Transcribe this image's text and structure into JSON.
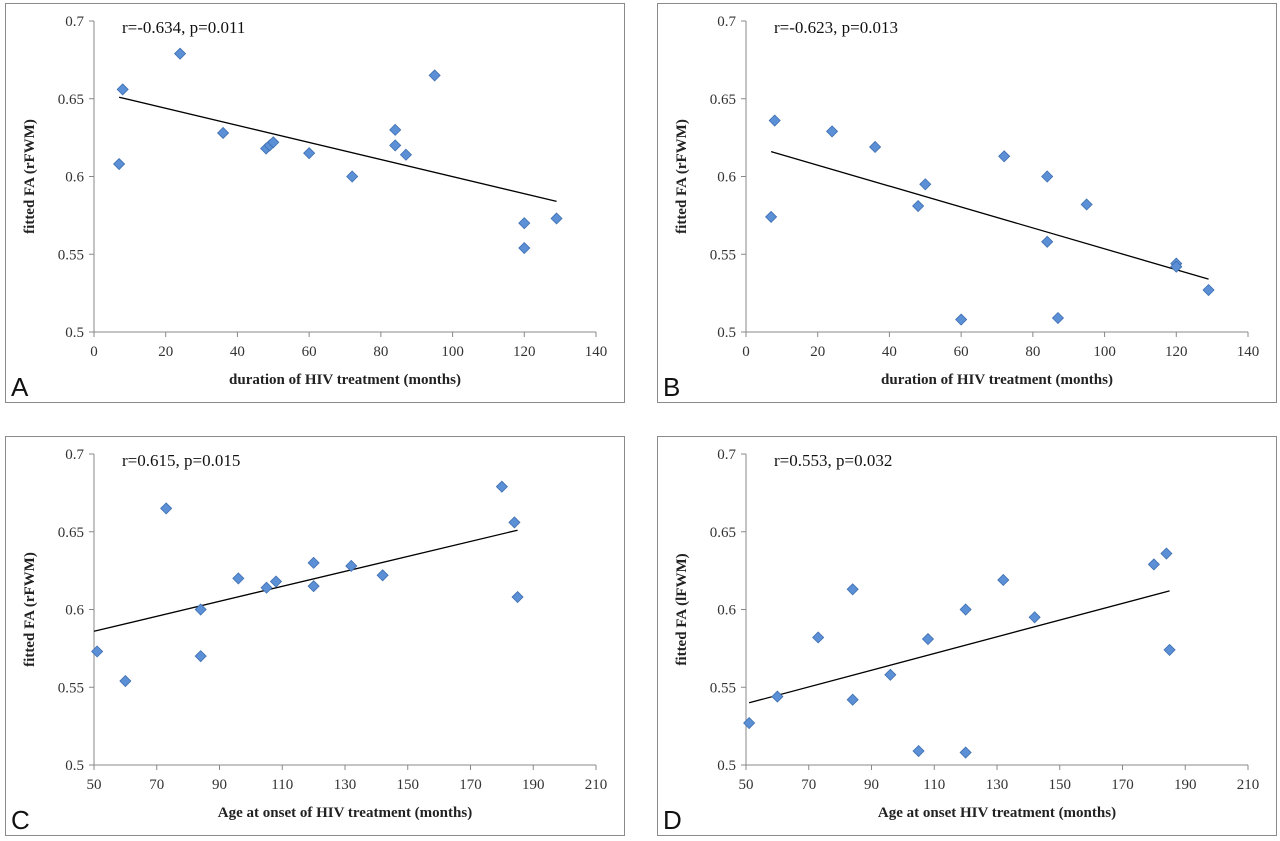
{
  "chart_data": [
    {
      "type": "scatter",
      "panel_label": "A",
      "annotation": "r=-0.634, p=0.011",
      "xlabel": "duration of HIV treatment (months)",
      "ylabel": "fitted FA (rFWM)",
      "xlim": [
        0,
        140
      ],
      "ylim": [
        0.5,
        0.7
      ],
      "xticks": [
        0,
        20,
        40,
        60,
        80,
        100,
        120,
        140
      ],
      "yticks": [
        0.5,
        0.55,
        0.6,
        0.65,
        0.7
      ],
      "ytick_labels": [
        "0.5",
        "0.55",
        "0.6",
        "0.65",
        "0.7"
      ],
      "grid": false,
      "marker_color": "#5b8fd6",
      "points": [
        [
          7,
          0.608
        ],
        [
          8,
          0.656
        ],
        [
          24,
          0.679
        ],
        [
          36,
          0.628
        ],
        [
          48,
          0.618
        ],
        [
          49,
          0.62
        ],
        [
          50,
          0.622
        ],
        [
          60,
          0.615
        ],
        [
          72,
          0.6
        ],
        [
          84,
          0.63
        ],
        [
          84,
          0.62
        ],
        [
          87,
          0.614
        ],
        [
          95,
          0.665
        ],
        [
          120,
          0.57
        ],
        [
          120,
          0.554
        ],
        [
          129,
          0.573
        ]
      ],
      "trendline": [
        [
          7,
          0.651
        ],
        [
          129,
          0.584
        ]
      ]
    },
    {
      "type": "scatter",
      "panel_label": "B",
      "annotation": "r=-0.623,  p=0.013",
      "xlabel": "duration of HIV treatment (months)",
      "ylabel": "fitted FA (rFWM)",
      "xlim": [
        0,
        140
      ],
      "ylim": [
        0.5,
        0.7
      ],
      "xticks": [
        0,
        20,
        40,
        60,
        80,
        100,
        120,
        140
      ],
      "yticks": [
        0.5,
        0.55,
        0.6,
        0.65,
        0.7
      ],
      "ytick_labels": [
        "0.5",
        "0.55",
        "0.6",
        "0.65",
        "0.7"
      ],
      "grid": false,
      "marker_color": "#5b8fd6",
      "points": [
        [
          7,
          0.574
        ],
        [
          8,
          0.636
        ],
        [
          24,
          0.629
        ],
        [
          36,
          0.619
        ],
        [
          48,
          0.581
        ],
        [
          50,
          0.595
        ],
        [
          60,
          0.508
        ],
        [
          72,
          0.613
        ],
        [
          84,
          0.6
        ],
        [
          84,
          0.558
        ],
        [
          87,
          0.509
        ],
        [
          95,
          0.582
        ],
        [
          120,
          0.544
        ],
        [
          120,
          0.542
        ],
        [
          129,
          0.527
        ]
      ],
      "trendline": [
        [
          7,
          0.616
        ],
        [
          129,
          0.534
        ]
      ]
    },
    {
      "type": "scatter",
      "panel_label": "C",
      "annotation": "r=0.615, p=0.015",
      "xlabel": "Age at onset of HIV treatment (months)",
      "ylabel": "fitted FA (rFWM)",
      "xlim": [
        50,
        210
      ],
      "ylim": [
        0.5,
        0.7
      ],
      "xticks": [
        50,
        70,
        90,
        110,
        130,
        150,
        170,
        190,
        210
      ],
      "yticks": [
        0.5,
        0.55,
        0.6,
        0.65,
        0.7
      ],
      "ytick_labels": [
        "0.5",
        "0.55",
        "0.6",
        "0.65",
        "0.7"
      ],
      "grid": false,
      "marker_color": "#5b8fd6",
      "points": [
        [
          51,
          0.573
        ],
        [
          60,
          0.554
        ],
        [
          73,
          0.665
        ],
        [
          84,
          0.6
        ],
        [
          84,
          0.57
        ],
        [
          96,
          0.62
        ],
        [
          105,
          0.614
        ],
        [
          108,
          0.618
        ],
        [
          120,
          0.63
        ],
        [
          120,
          0.615
        ],
        [
          132,
          0.628
        ],
        [
          142,
          0.622
        ],
        [
          180,
          0.679
        ],
        [
          184,
          0.656
        ],
        [
          185,
          0.608
        ]
      ],
      "trendline": [
        [
          50,
          0.586
        ],
        [
          185,
          0.651
        ]
      ]
    },
    {
      "type": "scatter",
      "panel_label": "D",
      "annotation": "r=0.553, p=0.032",
      "xlabel": "Age at onset HIV treatment (months)",
      "ylabel": "fitted FA (lFWM)",
      "xlim": [
        50,
        210
      ],
      "ylim": [
        0.5,
        0.7
      ],
      "xticks": [
        50,
        70,
        90,
        110,
        130,
        150,
        170,
        190,
        210
      ],
      "yticks": [
        0.5,
        0.55,
        0.6,
        0.65,
        0.7
      ],
      "ytick_labels": [
        "0.5",
        "0.55",
        "0.6",
        "0.65",
        "0.7"
      ],
      "grid": false,
      "marker_color": "#5b8fd6",
      "points": [
        [
          51,
          0.527
        ],
        [
          60,
          0.544
        ],
        [
          73,
          0.582
        ],
        [
          84,
          0.613
        ],
        [
          84,
          0.542
        ],
        [
          96,
          0.558
        ],
        [
          105,
          0.509
        ],
        [
          108,
          0.581
        ],
        [
          120,
          0.6
        ],
        [
          120,
          0.508
        ],
        [
          132,
          0.619
        ],
        [
          142,
          0.595
        ],
        [
          180,
          0.629
        ],
        [
          184,
          0.636
        ],
        [
          185,
          0.574
        ]
      ],
      "trendline": [
        [
          51,
          0.54
        ],
        [
          185,
          0.612
        ]
      ]
    }
  ]
}
